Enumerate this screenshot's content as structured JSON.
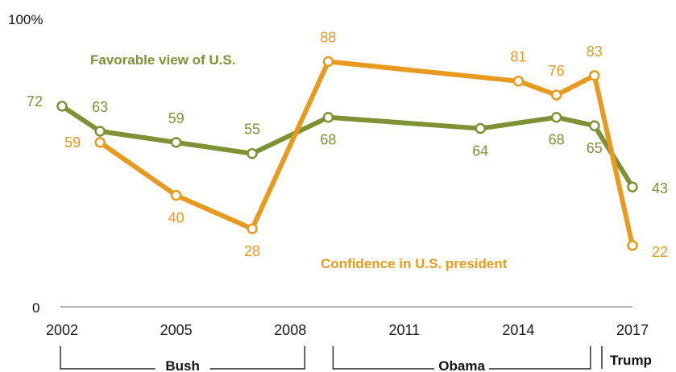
{
  "chart_data": {
    "type": "line",
    "x": [
      2002,
      2003,
      2005,
      2007,
      2009,
      2013,
      2015,
      2016,
      2017
    ],
    "series": [
      {
        "name": "Favorable view of U.S.",
        "color": "#7f9135",
        "x": [
          2002,
          2003,
          2005,
          2007,
          2009,
          2013,
          2015,
          2016,
          2017
        ],
        "values": [
          72,
          63,
          59,
          55,
          68,
          64,
          68,
          65,
          43
        ]
      },
      {
        "name": "Confidence in U.S. president",
        "color": "#e89a1f",
        "x": [
          2003,
          2005,
          2007,
          2009,
          2014,
          2015,
          2016,
          2017
        ],
        "values": [
          59,
          40,
          28,
          88,
          81,
          76,
          83,
          22
        ]
      }
    ],
    "y_top_label": "100%",
    "y_bottom_label": "0",
    "ylim": [
      0,
      100
    ],
    "xlim": [
      2002,
      2017
    ],
    "x_ticks": [
      "2002",
      "2005",
      "2008",
      "2011",
      "2014",
      "2017"
    ],
    "eras": [
      {
        "name": "Bush",
        "start": 2002,
        "end": 2008
      },
      {
        "name": "Obama",
        "start": 2009,
        "end": 2016
      },
      {
        "name": "Trump",
        "start": 2017,
        "end": 2017
      }
    ],
    "grid": false,
    "legend": "inline labels"
  }
}
